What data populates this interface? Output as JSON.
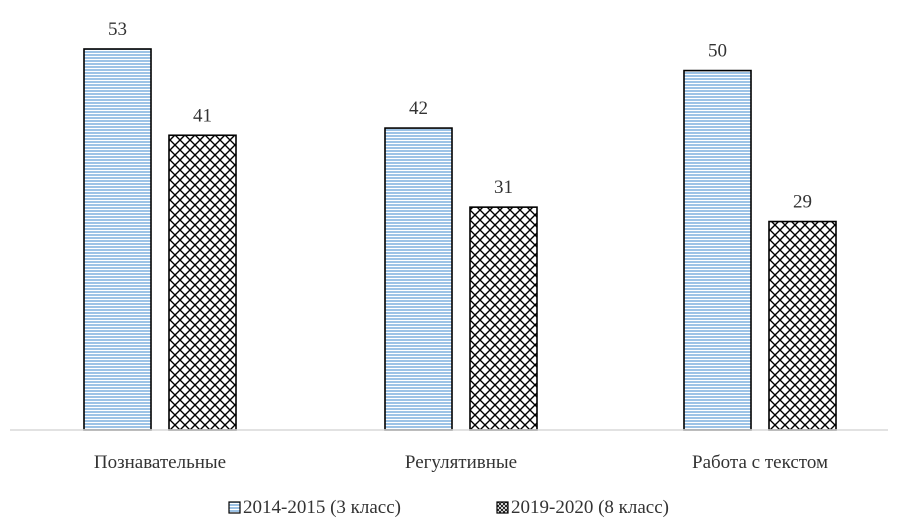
{
  "chart_data": {
    "type": "bar",
    "title": "",
    "xlabel": "",
    "ylabel": "",
    "categories": [
      "Познавательные",
      "Регулятивные",
      "Работа с текстом"
    ],
    "series": [
      {
        "name": "2014-2015 (3 класс)",
        "values": [
          53,
          42,
          50
        ],
        "pattern": "horizontal-stripes",
        "fill": "#9dc3e6",
        "stripe": "#ffffff"
      },
      {
        "name": "2019-2020 (8 класс)",
        "values": [
          41,
          31,
          29
        ],
        "pattern": "diagonal-crosshatch",
        "fill": "#ffffff",
        "stripe": "#000000"
      }
    ],
    "ylim": [
      0,
      53
    ],
    "grid": false,
    "data_labels": true,
    "legend_position": "bottom"
  }
}
